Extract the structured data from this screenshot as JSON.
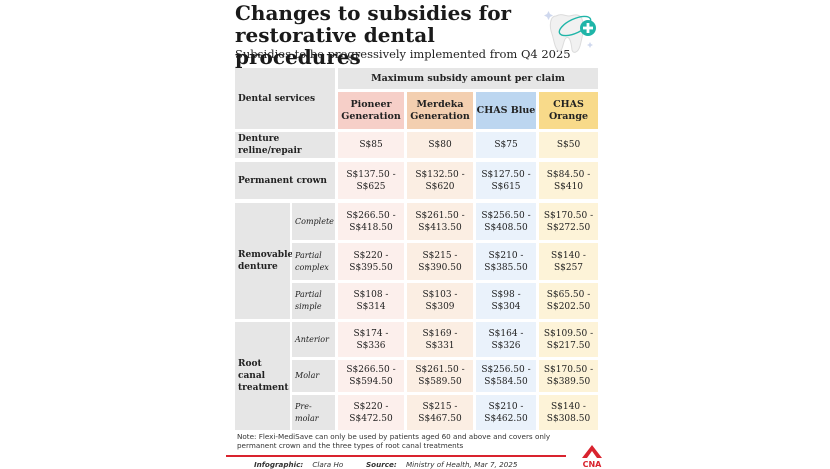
{
  "title": "Changes to subsidies for restorative dental procedures",
  "subtitle": "Subsidies to be progressively implemented from Q4 2025",
  "table": {
    "row_header": "Dental services",
    "group_header": "Maximum subsidy amount per claim",
    "columns": [
      "Pioneer Generation",
      "Merdeka Generation",
      "CHAS Blue",
      "CHAS Orange"
    ],
    "rows": [
      {
        "service": "Denture reline/repair",
        "values": [
          "S$85",
          "S$80",
          "S$75",
          "S$50"
        ]
      },
      {
        "service": "Permanent crown",
        "values": [
          "S$137.50 - S$625",
          "S$132.50 - S$620",
          "S$127.50 - S$615",
          "S$84.50 - S$410"
        ]
      },
      {
        "service": "Removable denture",
        "sub": "Complete",
        "values": [
          "S$266.50 - S$418.50",
          "S$261.50 - S$413.50",
          "S$256.50 - S$408.50",
          "S$170.50 - S$272.50"
        ]
      },
      {
        "service": "Removable denture",
        "sub": "Partial complex",
        "values": [
          "S$220 - S$395.50",
          "S$215 - S$390.50",
          "S$210 - S$385.50",
          "S$140 - S$257"
        ]
      },
      {
        "service": "Removable denture",
        "sub": "Partial simple",
        "values": [
          "S$108 - S$314",
          "S$103 - S$309",
          "S$98 - S$304",
          "S$65.50 - S$202.50"
        ]
      },
      {
        "service": "Root canal treatment",
        "sub": "Anterior",
        "values": [
          "S$174 - S$336",
          "S$169 - S$331",
          "S$164 - S$326",
          "S$109.50 - S$217.50"
        ]
      },
      {
        "service": "Root canal treatment",
        "sub": "Molar",
        "values": [
          "S$266.50 - S$594.50",
          "S$261.50 - S$589.50",
          "S$256.50 - S$584.50",
          "S$170.50 - S$389.50"
        ]
      },
      {
        "service": "Root canal treatment",
        "sub": "Pre-molar",
        "values": [
          "S$220 - S$472.50",
          "S$215 - S$467.50",
          "S$210 - S$462.50",
          "S$140 - S$308.50"
        ]
      }
    ]
  },
  "note": "Note: Flexi-MediSave can only be used by patients aged 60 and above and covers only permanent crown and the three types of root canal treatments",
  "credits": {
    "infographic_label": "Infographic:",
    "infographic": "Clara Ho",
    "source_label": "Source:",
    "source": "Ministry of Health, Mar 7, 2025"
  },
  "logo_text": "CNA",
  "icon": "tooth-icon",
  "colors": {
    "pioneer": "#f6cfc8",
    "merdeka": "#f3cfb0",
    "chas_blue": "#bcd6f0",
    "chas_orange": "#f8da8a",
    "header_gray": "#e6e6e6",
    "accent_red": "#d9232e",
    "teal": "#1fb5a8"
  }
}
